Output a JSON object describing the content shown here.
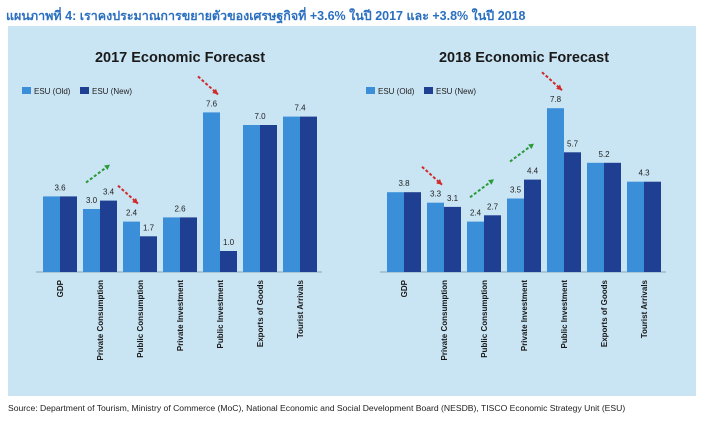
{
  "heading": "แผนภาพที่ 4: เราคงประมาณการขยายตัวของเศรษฐกิจที่ +3.6% ในปี 2017 และ +3.8% ในปี 2018",
  "source": "Source: Department of Tourism, Ministry of Commerce (MoC), National Economic and Social Development Board (NESDB), TISCO Economic Strategy Unit (ESU)",
  "colors": {
    "old": "#3a8fd8",
    "new": "#1f3f93",
    "panel": "#c9e4f3",
    "up_arrow": "#2a9a3a",
    "down_arrow": "#d02a2a"
  },
  "chart_data": [
    {
      "type": "bar",
      "title": "2017 Economic Forecast",
      "categories": [
        "GDP",
        "Private Consumption",
        "Public Consumption",
        "Private Investment",
        "Public Investment",
        "Exports of Goods",
        "Tourist Arrivals"
      ],
      "series": [
        {
          "name": "ESU (Old)",
          "values": [
            3.6,
            3.0,
            2.4,
            2.6,
            7.6,
            7.0,
            7.4
          ]
        },
        {
          "name": "ESU (New)",
          "values": [
            3.6,
            3.4,
            1.7,
            2.6,
            1.0,
            7.0,
            7.4
          ]
        }
      ],
      "labels": [
        "3.6",
        "3.0",
        "3.4",
        "2.4",
        "1.7",
        "2.6",
        "7.6",
        "1.0",
        "7.0",
        "7.4"
      ],
      "arrows": [
        {
          "category": "Private Consumption",
          "direction": "up"
        },
        {
          "category": "Public Consumption",
          "direction": "down"
        },
        {
          "category": "Public Investment",
          "direction": "down"
        }
      ],
      "ylim": [
        0,
        8
      ]
    },
    {
      "type": "bar",
      "title": "2018 Economic Forecast",
      "categories": [
        "GDP",
        "Private Consumption",
        "Public Consumption",
        "Private Investment",
        "Public Investment",
        "Exports of Goods",
        "Tourist Arrivals"
      ],
      "series": [
        {
          "name": "ESU (Old)",
          "values": [
            3.8,
            3.3,
            2.4,
            3.5,
            7.8,
            5.2,
            4.3
          ]
        },
        {
          "name": "ESU (New)",
          "values": [
            3.8,
            3.1,
            2.7,
            4.4,
            5.7,
            5.2,
            4.3
          ]
        }
      ],
      "labels": [
        "3.8",
        "3.3",
        "3.1",
        "2.4",
        "2.7",
        "3.5",
        "4.4",
        "7.8",
        "5.7",
        "5.2",
        "4.3"
      ],
      "arrows": [
        {
          "category": "Private Consumption",
          "direction": "down"
        },
        {
          "category": "Public Consumption",
          "direction": "up"
        },
        {
          "category": "Private Investment",
          "direction": "up"
        },
        {
          "category": "Public Investment",
          "direction": "down"
        }
      ],
      "ylim": [
        0,
        8
      ]
    }
  ]
}
